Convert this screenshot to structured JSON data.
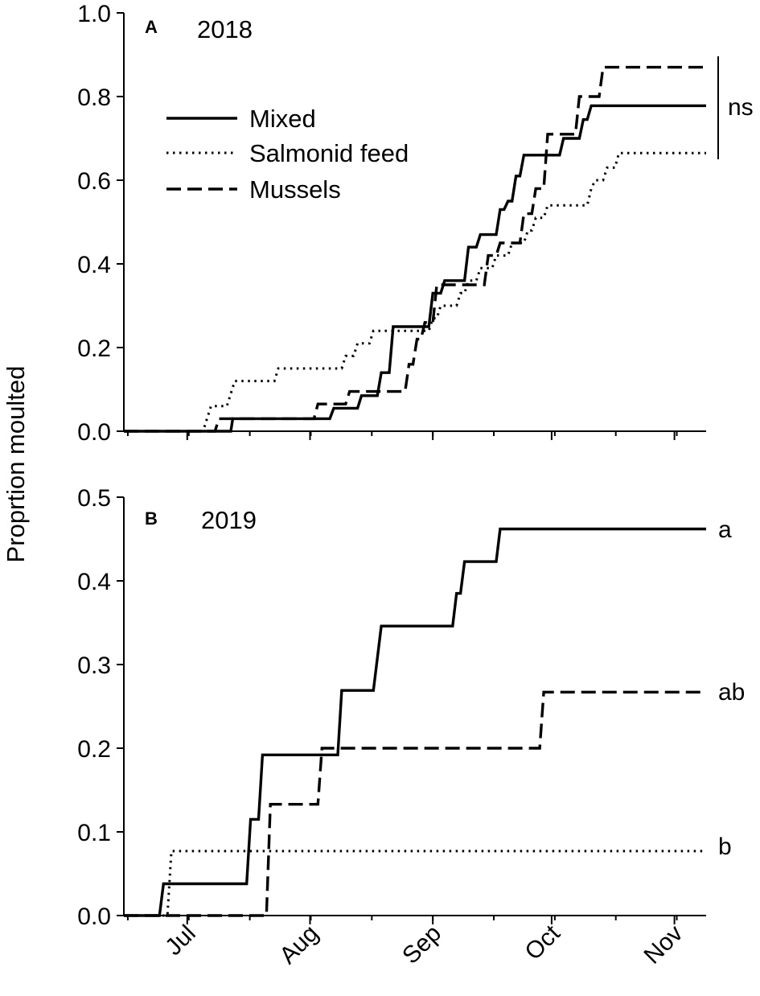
{
  "ylabel": "Proprtion moulted",
  "months": [
    "Jul",
    "Aug",
    "Sep",
    "Oct",
    "Nov"
  ],
  "legend": [
    {
      "name": "Mixed",
      "style": "solid"
    },
    {
      "name": "Salmonid feed",
      "style": "dotted"
    },
    {
      "name": "Mussels",
      "style": "dashed"
    }
  ],
  "chart_data": [
    {
      "type": "line",
      "step": true,
      "panel": "A",
      "title": "2018",
      "xlabel": "",
      "ylabel": "Proprtion moulted",
      "x_unit": "days since 15 Jun",
      "xlim": [
        0,
        147
      ],
      "ylim": [
        0,
        1.0
      ],
      "yticks": [
        0.0,
        0.2,
        0.4,
        0.6,
        0.8,
        1.0
      ],
      "ytick_labels": [
        "0.0",
        "0.2",
        "0.4",
        "0.6",
        "0.8",
        "1.0"
      ],
      "significance": [
        {
          "label": "ns",
          "bracket": true,
          "y_range": [
            0.67,
            0.87
          ]
        }
      ],
      "series": [
        {
          "name": "Mixed",
          "style": "solid",
          "color": "#000000",
          "points": [
            [
              0,
              0
            ],
            [
              27,
              0
            ],
            [
              27.5,
              0.03
            ],
            [
              52,
              0.03
            ],
            [
              53,
              0.055
            ],
            [
              59,
              0.055
            ],
            [
              60,
              0.085
            ],
            [
              64,
              0.085
            ],
            [
              65,
              0.14
            ],
            [
              67,
              0.14
            ],
            [
              68,
              0.25
            ],
            [
              77,
              0.25
            ],
            [
              78,
              0.33
            ],
            [
              80,
              0.33
            ],
            [
              81,
              0.36
            ],
            [
              86,
              0.36
            ],
            [
              87,
              0.44
            ],
            [
              89,
              0.44
            ],
            [
              90,
              0.47
            ],
            [
              94,
              0.47
            ],
            [
              95,
              0.53
            ],
            [
              96,
              0.53
            ],
            [
              97,
              0.55
            ],
            [
              98,
              0.55
            ],
            [
              99,
              0.61
            ],
            [
              100,
              0.61
            ],
            [
              101,
              0.66
            ],
            [
              110,
              0.66
            ],
            [
              111,
              0.7
            ],
            [
              115,
              0.7
            ],
            [
              116,
              0.745
            ],
            [
              117,
              0.745
            ],
            [
              118,
              0.778
            ],
            [
              147,
              0.778
            ]
          ]
        },
        {
          "name": "Salmonid feed",
          "style": "dotted",
          "color": "#000000",
          "points": [
            [
              0,
              0
            ],
            [
              20,
              0
            ],
            [
              21,
              0.03
            ],
            [
              22,
              0.06
            ],
            [
              26,
              0.06
            ],
            [
              27,
              0.09
            ],
            [
              28,
              0.12
            ],
            [
              38,
              0.12
            ],
            [
              39,
              0.15
            ],
            [
              55,
              0.15
            ],
            [
              56,
              0.18
            ],
            [
              58,
              0.18
            ],
            [
              59,
              0.21
            ],
            [
              62,
              0.21
            ],
            [
              63,
              0.24
            ],
            [
              77,
              0.24
            ],
            [
              78,
              0.27
            ],
            [
              79,
              0.27
            ],
            [
              80,
              0.3
            ],
            [
              84,
              0.3
            ],
            [
              85,
              0.33
            ],
            [
              86,
              0.33
            ],
            [
              87,
              0.36
            ],
            [
              89,
              0.36
            ],
            [
              90,
              0.39
            ],
            [
              93,
              0.39
            ],
            [
              94,
              0.42
            ],
            [
              97,
              0.42
            ],
            [
              98,
              0.45
            ],
            [
              101,
              0.45
            ],
            [
              102,
              0.48
            ],
            [
              103,
              0.48
            ],
            [
              104,
              0.51
            ],
            [
              106,
              0.51
            ],
            [
              107,
              0.54
            ],
            [
              117,
              0.54
            ],
            [
              118,
              0.58
            ],
            [
              119,
              0.6
            ],
            [
              121,
              0.6
            ],
            [
              122,
              0.63
            ],
            [
              124,
              0.63
            ],
            [
              125,
              0.665
            ],
            [
              147,
              0.665
            ]
          ]
        },
        {
          "name": "Mussels",
          "style": "dashed",
          "color": "#000000",
          "points": [
            [
              0,
              0
            ],
            [
              23,
              0
            ],
            [
              24,
              0.03
            ],
            [
              48,
              0.03
            ],
            [
              49,
              0.065
            ],
            [
              56,
              0.065
            ],
            [
              57,
              0.095
            ],
            [
              71,
              0.095
            ],
            [
              72,
              0.16
            ],
            [
              73,
              0.16
            ],
            [
              74,
              0.22
            ],
            [
              75,
              0.22
            ],
            [
              76,
              0.26
            ],
            [
              78,
              0.26
            ],
            [
              79,
              0.35
            ],
            [
              91,
              0.35
            ],
            [
              92,
              0.42
            ],
            [
              94,
              0.42
            ],
            [
              95,
              0.45
            ],
            [
              100,
              0.45
            ],
            [
              101,
              0.52
            ],
            [
              103,
              0.52
            ],
            [
              104,
              0.58
            ],
            [
              106,
              0.58
            ],
            [
              107,
              0.71
            ],
            [
              114,
              0.71
            ],
            [
              115,
              0.8
            ],
            [
              120,
              0.8
            ],
            [
              121,
              0.87
            ],
            [
              147,
              0.87
            ]
          ]
        }
      ]
    },
    {
      "type": "line",
      "step": true,
      "panel": "B",
      "title": "2019",
      "xlabel": "",
      "ylabel": "Proprtion moulted",
      "x_unit": "days since 15 Jun",
      "xlim": [
        0,
        147
      ],
      "ylim": [
        0,
        0.5
      ],
      "yticks": [
        0.0,
        0.1,
        0.2,
        0.3,
        0.4,
        0.5
      ],
      "ytick_labels": [
        "0.0",
        "0.1",
        "0.2",
        "0.3",
        "0.4",
        "0.5"
      ],
      "xticks_months": [
        "Jul",
        "Aug",
        "Sep",
        "Oct",
        "Nov"
      ],
      "significance": [
        {
          "series": "Mixed",
          "label": "a"
        },
        {
          "series": "Mussels",
          "label": "ab"
        },
        {
          "series": "Salmonid feed",
          "label": "b"
        }
      ],
      "series": [
        {
          "name": "Mixed",
          "style": "solid",
          "color": "#000000",
          "points": [
            [
              0,
              0
            ],
            [
              9,
              0
            ],
            [
              10,
              0.038
            ],
            [
              31,
              0.038
            ],
            [
              32,
              0.115
            ],
            [
              34,
              0.115
            ],
            [
              35,
              0.192
            ],
            [
              54,
              0.192
            ],
            [
              55,
              0.269
            ],
            [
              63,
              0.269
            ],
            [
              65,
              0.346
            ],
            [
              83,
              0.346
            ],
            [
              84,
              0.385
            ],
            [
              85,
              0.385
            ],
            [
              86,
              0.423
            ],
            [
              94,
              0.423
            ],
            [
              95,
              0.462
            ],
            [
              147,
              0.462
            ]
          ]
        },
        {
          "name": "Salmonid feed",
          "style": "dotted",
          "color": "#000000",
          "points": [
            [
              0,
              0
            ],
            [
              11,
              0
            ],
            [
              12,
              0.077
            ],
            [
              147,
              0.077
            ]
          ]
        },
        {
          "name": "Mussels",
          "style": "dashed",
          "color": "#000000",
          "points": [
            [
              0,
              0
            ],
            [
              36,
              0
            ],
            [
              37,
              0.133
            ],
            [
              49,
              0.133
            ],
            [
              50,
              0.2
            ],
            [
              105,
              0.2
            ],
            [
              106,
              0.267
            ],
            [
              147,
              0.267
            ]
          ]
        }
      ]
    }
  ]
}
